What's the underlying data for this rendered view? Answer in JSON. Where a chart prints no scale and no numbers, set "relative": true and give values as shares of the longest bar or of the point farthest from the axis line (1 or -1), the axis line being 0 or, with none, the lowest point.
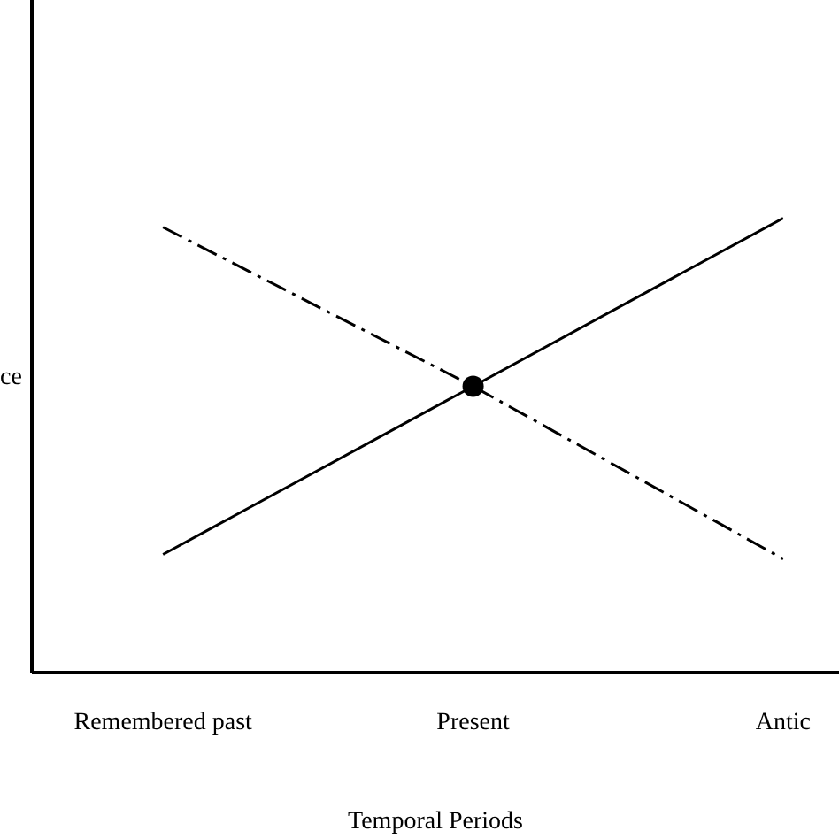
{
  "chart_data": {
    "type": "line",
    "relative": true,
    "xlabel": "Temporal Periods",
    "ylabel": "ce",
    "categories": [
      "Remembered past",
      "Present",
      "Antic"
    ],
    "series": [
      {
        "color": "#000000",
        "line_style": "solid",
        "values": [
          0.26,
          0.63,
          1
        ]
      },
      {
        "color": "#000000",
        "line_style": "dashed",
        "values": [
          0.98,
          0.63,
          0.25
        ]
      },
      {
        "type": "scatter",
        "color": "#000000",
        "marker": "circle",
        "values": [
          null,
          0.63,
          null
        ]
      }
    ],
    "grid": false
  }
}
